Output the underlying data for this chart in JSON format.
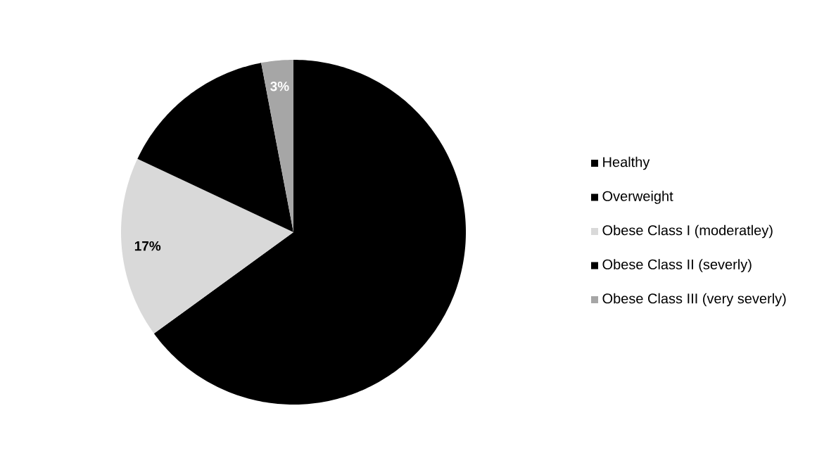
{
  "chart_data": {
    "type": "pie",
    "categories": [
      "Healthy",
      "Overweight",
      "Obese Class I (moderatley)",
      "Obese Class II (severly)",
      "Obese Class III (very severly)"
    ],
    "values": [
      65,
      0,
      17,
      15,
      3
    ],
    "colors": [
      "#000000",
      "#000000",
      "#d9d9d9",
      "#000000",
      "#a6a6a6"
    ],
    "value_labels": [
      null,
      null,
      "17%",
      null,
      "3%"
    ],
    "legend": "right"
  }
}
